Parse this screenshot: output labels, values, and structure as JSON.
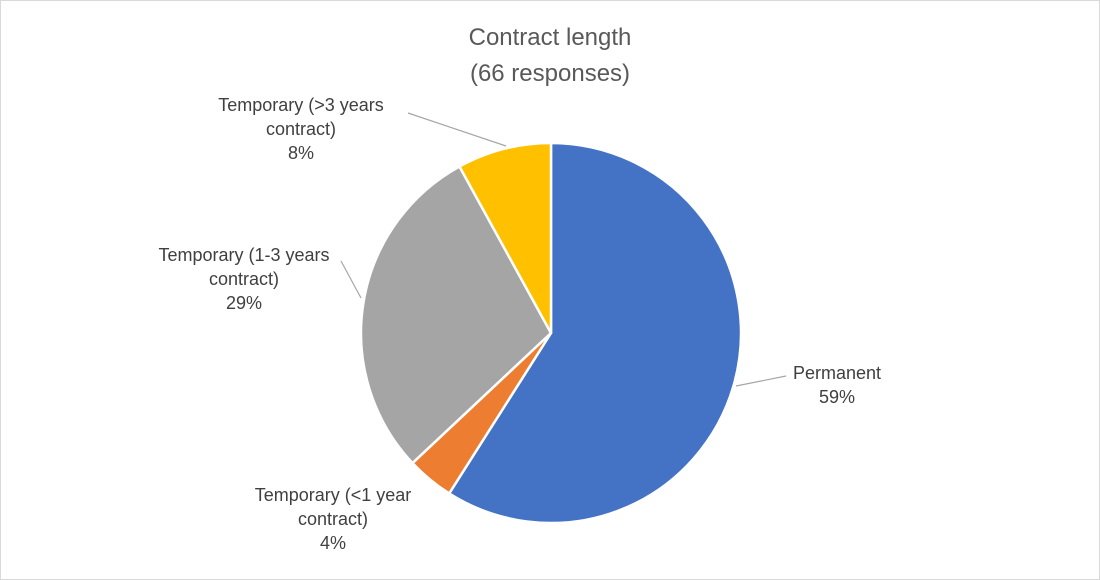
{
  "chart_data": {
    "type": "pie",
    "title": "Contract length",
    "subtitle": "(66 responses)",
    "slices": [
      {
        "label": [
          "Permanent"
        ],
        "value": 59,
        "display": "59%",
        "color": "#4472C4"
      },
      {
        "label": [
          "Temporary (<1 year",
          "contract)"
        ],
        "value": 4,
        "display": "4%",
        "color": "#ED7D31"
      },
      {
        "label": [
          "Temporary (1-3 years",
          "contract)"
        ],
        "value": 29,
        "display": "29%",
        "color": "#A5A5A5"
      },
      {
        "label": [
          "Temporary (>3 years",
          "contract)"
        ],
        "value": 8,
        "display": "8%",
        "color": "#FFC000"
      }
    ],
    "start_angle": "top",
    "direction": "clockwise",
    "legend": "none",
    "data_labels": "outside with leader lines"
  }
}
